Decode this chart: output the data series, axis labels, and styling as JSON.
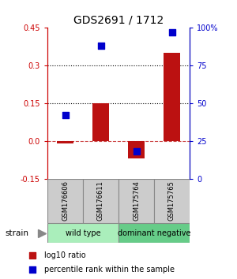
{
  "title": "GDS2691 / 1712",
  "samples": [
    "GSM176606",
    "GSM176611",
    "GSM175764",
    "GSM175765"
  ],
  "log10_ratio": [
    -0.01,
    0.15,
    -0.07,
    0.35
  ],
  "percentile_rank_scaled": [
    42,
    88,
    18,
    97
  ],
  "groups": [
    {
      "label": "wild type",
      "color": "#aaeebb",
      "samples": [
        0,
        1
      ]
    },
    {
      "label": "dominant negative",
      "color": "#66cc88",
      "samples": [
        2,
        3
      ]
    }
  ],
  "bar_color": "#bb1111",
  "dot_color": "#0000cc",
  "ylim_left": [
    -0.15,
    0.45
  ],
  "ylim_right": [
    0,
    100
  ],
  "yticks_left": [
    -0.15,
    0.0,
    0.15,
    0.3,
    0.45
  ],
  "yticks_right": [
    0,
    25,
    50,
    75,
    100
  ],
  "ytick_labels_right": [
    "0",
    "25",
    "50",
    "75",
    "100%"
  ],
  "hlines": [
    0.15,
    0.3
  ],
  "dashed_hline": 0.0,
  "bar_width": 0.45,
  "dot_size": 40,
  "sample_area_color": "#cccccc",
  "legend_ratio_label": "log10 ratio",
  "legend_pct_label": "percentile rank within the sample",
  "strain_label": "strain",
  "left_tick_color": "#cc0000",
  "right_tick_color": "#0000cc",
  "title_fontsize": 10,
  "tick_fontsize": 7,
  "sample_fontsize": 6,
  "group_fontsize": 7,
  "legend_fontsize": 7
}
